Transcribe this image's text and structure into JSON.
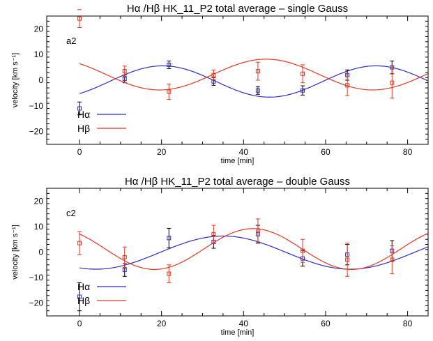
{
  "colors": {
    "halpha": "#2b2bc8",
    "hbeta": "#e8341c",
    "error": "#000000",
    "axis": "#000000"
  },
  "chart_data": [
    {
      "type": "scatter",
      "title": "Hα /Hβ HK_11_P2 total average – single Gauss",
      "panel_label": "a2",
      "xlabel": "time [min]",
      "ylabel": "velocity [km s⁻¹]",
      "xlim": [
        -8,
        85
      ],
      "ylim": [
        -25,
        25
      ],
      "xticks": [
        0,
        20,
        40,
        60,
        80
      ],
      "xtick_labels": [
        "0",
        "20",
        "40",
        "60",
        "80"
      ],
      "yticks": [
        -20,
        -10,
        0,
        10,
        20
      ],
      "ytick_labels": [
        "−20",
        "−10",
        "0",
        "10",
        "20"
      ],
      "legend": [
        {
          "label": "Hα",
          "series": 0
        },
        {
          "label": "Hβ",
          "series": 1
        }
      ],
      "series": [
        {
          "name": "Hα",
          "color": "#2b2bc8",
          "points": [
            {
              "x": 0,
              "y": -11,
              "err": 2.5
            },
            {
              "x": 11,
              "y": 0.5,
              "err": 1.5
            },
            {
              "x": 21.8,
              "y": 6,
              "err": 1.5
            },
            {
              "x": 32.7,
              "y": -0.5,
              "err": 1.5
            },
            {
              "x": 43.5,
              "y": -4,
              "err": 1.5
            },
            {
              "x": 54.4,
              "y": -4,
              "err": 1.8
            },
            {
              "x": 65.3,
              "y": 2,
              "err": 2
            },
            {
              "x": 76.2,
              "y": 5,
              "err": 2.5
            }
          ],
          "fit": {
            "amplitude": 6.1,
            "period": 52,
            "phase_x": 20.3,
            "offset": -0.5
          }
        },
        {
          "name": "Hβ",
          "color": "#e8341c",
          "points": [
            {
              "x": 0,
              "y": 24,
              "err": 3.5
            },
            {
              "x": 11,
              "y": 3.5,
              "err": 2
            },
            {
              "x": 21.8,
              "y": -4.5,
              "err": 3
            },
            {
              "x": 32.7,
              "y": 2,
              "err": 2
            },
            {
              "x": 43.5,
              "y": 3.5,
              "err": 3.5
            },
            {
              "x": 54.4,
              "y": 2.5,
              "err": 3.5
            },
            {
              "x": 65.3,
              "y": -2,
              "err": 4
            },
            {
              "x": 76.2,
              "y": -1,
              "err": 6
            }
          ],
          "fit": {
            "amplitude": 6,
            "period": 52,
            "phase_x": 45.5,
            "offset": 2.2
          }
        }
      ]
    },
    {
      "type": "scatter",
      "title": "Hα /Hβ HK_11_P2 total average – double Gauss",
      "panel_label": "c2",
      "xlabel": "time [min]",
      "ylabel": "velocity [km s⁻¹]",
      "xlim": [
        -8,
        85
      ],
      "ylim": [
        -25,
        25
      ],
      "xticks": [
        0,
        20,
        40,
        60,
        80
      ],
      "xtick_labels": [
        "0",
        "20",
        "40",
        "60",
        "80"
      ],
      "yticks": [
        -20,
        -10,
        0,
        10,
        20
      ],
      "ytick_labels": [
        "−20",
        "−10",
        "0",
        "10",
        "20"
      ],
      "legend": [
        {
          "label": "Hα",
          "series": 0
        },
        {
          "label": "Hβ",
          "series": 1
        }
      ],
      "series": [
        {
          "name": "Hα",
          "color": "#2b2bc8",
          "points": [
            {
              "x": 0,
              "y": -17.5,
              "err": 5.5
            },
            {
              "x": 11,
              "y": -7,
              "err": 2.5
            },
            {
              "x": 21.8,
              "y": 5.5,
              "err": 3.8
            },
            {
              "x": 32.7,
              "y": 4,
              "err": 2.5
            },
            {
              "x": 43.5,
              "y": 7,
              "err": 3.5
            },
            {
              "x": 54.4,
              "y": -2.5,
              "err": 3
            },
            {
              "x": 65.3,
              "y": -1,
              "err": 4
            },
            {
              "x": 76.2,
              "y": 0.5,
              "err": 4
            }
          ],
          "fit": {
            "amplitude": 6.5,
            "period": 62,
            "phase_x": 35,
            "offset": -0.2
          }
        },
        {
          "name": "Hβ",
          "color": "#e8341c",
          "points": [
            {
              "x": 0,
              "y": 3.5,
              "err": 4.5
            },
            {
              "x": 11,
              "y": -2,
              "err": 4
            },
            {
              "x": 21.8,
              "y": -8.5,
              "err": 3.5
            },
            {
              "x": 32.7,
              "y": 7,
              "err": 3.5
            },
            {
              "x": 43.5,
              "y": 8.5,
              "err": 4.5
            },
            {
              "x": 54.4,
              "y": 0.5,
              "err": 4.5
            },
            {
              "x": 65.3,
              "y": -3,
              "err": 6.5
            },
            {
              "x": 76.2,
              "y": -3,
              "err": 5.5
            }
          ],
          "fit": {
            "amplitude": 8,
            "period": 48,
            "phase_x": 42.3,
            "offset": 1.2
          }
        }
      ]
    }
  ]
}
